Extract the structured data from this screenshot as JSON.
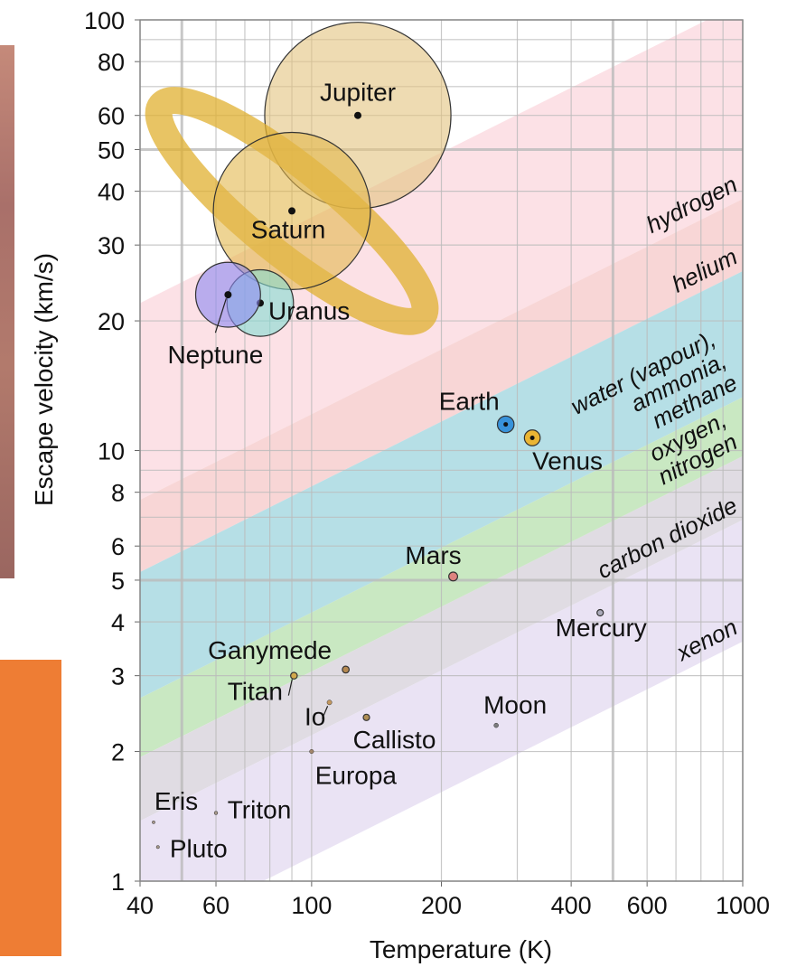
{
  "chart_data": {
    "type": "bubble",
    "xlabel": "Temperature (K)",
    "ylabel": "Escape velocity (km/s)",
    "xscale": "log",
    "yscale": "log",
    "grid": true,
    "xlim": [
      40,
      1000
    ],
    "ylim": [
      1,
      100
    ],
    "xticks": [
      40,
      60,
      100,
      200,
      400,
      600,
      1000
    ],
    "yticks": [
      1,
      2,
      3,
      4,
      5,
      6,
      8,
      10,
      20,
      30,
      40,
      50,
      60,
      80,
      100
    ],
    "xgrid": [
      40,
      50,
      60,
      70,
      80,
      90,
      100,
      200,
      300,
      400,
      500,
      600,
      700,
      800,
      900,
      1000
    ],
    "ygrid": [
      1,
      2,
      3,
      4,
      5,
      6,
      7,
      8,
      9,
      10,
      20,
      30,
      40,
      50,
      60,
      70,
      80,
      90,
      100
    ],
    "names": [
      "Jupiter",
      "Saturn",
      "Uranus",
      "Neptune",
      "Earth",
      "Venus",
      "Mars",
      "Mercury",
      "Ganymede",
      "Titan",
      "Io",
      "Callisto",
      "Europa",
      "Moon",
      "Eris",
      "Triton",
      "Pluto"
    ],
    "x": [
      128,
      90,
      76,
      64,
      282,
      325,
      213,
      467,
      120,
      91,
      110,
      134,
      100,
      268,
      43,
      60,
      44
    ],
    "y": [
      60,
      36,
      22,
      23,
      11.5,
      10.7,
      5.1,
      4.2,
      3.1,
      3.0,
      2.6,
      2.4,
      2.0,
      2.3,
      1.37,
      1.44,
      1.2
    ],
    "sizes": [
      11.2,
      9.45,
      4.0,
      3.9,
      1.0,
      0.95,
      0.53,
      0.38,
      0.41,
      0.4,
      0.29,
      0.38,
      0.25,
      0.27,
      0.18,
      0.21,
      0.19
    ],
    "colors": [
      "#e2c37e",
      "#e2b84c",
      "#84dcd2",
      "#8c88f2",
      "#2a8ad8",
      "#f0b020",
      "#e07878",
      "#a4a4b4",
      "#b08040",
      "#d4a440",
      "#c09050",
      "#a88444",
      "#a08060",
      "#707070",
      "#a09080",
      "#a09080",
      "#a09080"
    ],
    "bands": [
      {
        "name": [
          "hydrogen"
        ],
        "color": "#fbdce2",
        "vlim": [
          38.4,
          110
        ]
      },
      {
        "name": [
          "helium"
        ],
        "color": "#f7cfcf",
        "vlim": [
          26.1,
          38.4
        ]
      },
      {
        "name": [
          "water (vapour),",
          "ammonia,",
          "methane"
        ],
        "color": "#a9d9e2",
        "vlim": [
          13.3,
          26.1
        ]
      },
      {
        "name": [
          "oxygen,",
          "nitrogen"
        ],
        "color": "#bfe4b7",
        "vlim": [
          9.7,
          13.3
        ]
      },
      {
        "name": [
          "carbon dioxide"
        ],
        "color": "#dad6de",
        "vlim": [
          6.9,
          9.7
        ]
      },
      {
        "name": [
          "xenon"
        ],
        "color": "#e6def2",
        "vlim": [
          3.6,
          6.9
        ]
      }
    ]
  }
}
